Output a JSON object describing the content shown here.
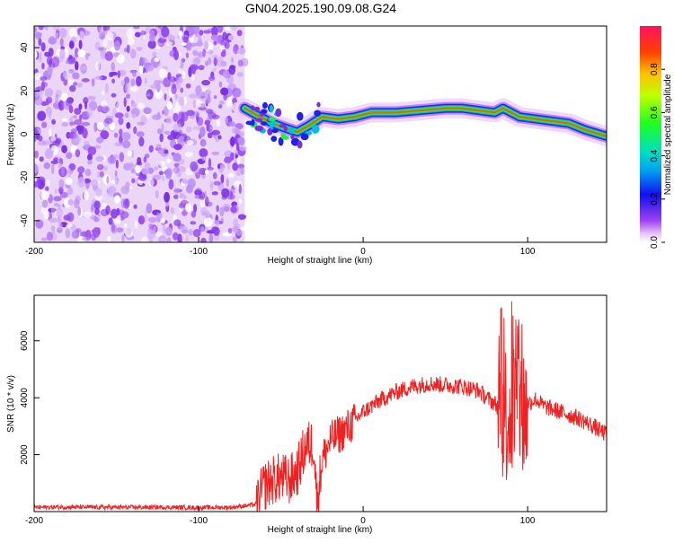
{
  "figure": {
    "title": "GN04.2025.190.09.08.G24"
  },
  "colors": {
    "snr_line": "#ee2222",
    "spectrogram_noise": "#7a2ee0",
    "axis": "#000000"
  },
  "chart_data": [
    {
      "type": "heatmap",
      "xlabel": "Height of straight line (km)",
      "ylabel": "Frequency (Hz)",
      "xlim": [
        -200,
        148
      ],
      "ylim": [
        -50,
        50
      ],
      "xticks": [
        -200,
        -100,
        0,
        100
      ],
      "yticks": [
        -40,
        -20,
        0,
        20,
        40
      ],
      "grid": false,
      "noise_region": {
        "x_from": -200,
        "x_to": -72
      },
      "ridge": [
        {
          "x": -72,
          "y": 12
        },
        {
          "x": -65,
          "y": 9
        },
        {
          "x": -55,
          "y": 5
        },
        {
          "x": -48,
          "y": 3
        },
        {
          "x": -40,
          "y": 1
        },
        {
          "x": -33,
          "y": 4
        },
        {
          "x": -25,
          "y": 8
        },
        {
          "x": -15,
          "y": 7
        },
        {
          "x": -5,
          "y": 8
        },
        {
          "x": 5,
          "y": 10
        },
        {
          "x": 20,
          "y": 10
        },
        {
          "x": 35,
          "y": 11
        },
        {
          "x": 50,
          "y": 12
        },
        {
          "x": 60,
          "y": 12
        },
        {
          "x": 70,
          "y": 11
        },
        {
          "x": 80,
          "y": 10
        },
        {
          "x": 85,
          "y": 12
        },
        {
          "x": 95,
          "y": 8
        },
        {
          "x": 105,
          "y": 7
        },
        {
          "x": 115,
          "y": 6
        },
        {
          "x": 125,
          "y": 5
        },
        {
          "x": 135,
          "y": 2
        },
        {
          "x": 148,
          "y": -1
        }
      ],
      "colorbar": {
        "label": "Normalized spectral amplitude",
        "range": [
          0,
          1
        ],
        "ticks": [
          "0.0",
          "0.2",
          "0.4",
          "0.6",
          "0.8"
        ]
      }
    },
    {
      "type": "line",
      "xlabel": "Height of straight line (km)",
      "ylabel": "SNR (10 * v/v)",
      "xlim": [
        -200,
        148
      ],
      "ylim": [
        0,
        7600
      ],
      "xticks": [
        -200,
        -100,
        0,
        100
      ],
      "yticks": [
        2000,
        4000,
        6000
      ],
      "grid": false,
      "series": [
        {
          "x": [
            -200,
            -180,
            -160,
            -140,
            -120,
            -100,
            -80,
            -65,
            -60,
            -55,
            -50,
            -45,
            -40,
            -35,
            -30,
            -28,
            -25,
            -20,
            -15,
            -10,
            -5,
            0,
            10,
            20,
            30,
            40,
            50,
            60,
            70,
            75,
            80,
            85,
            90,
            95,
            97,
            100,
            105,
            110,
            120,
            130,
            140,
            148
          ],
          "values": [
            150,
            160,
            150,
            150,
            150,
            140,
            150,
            250,
            900,
            1100,
            1200,
            1100,
            1400,
            2300,
            2400,
            300,
            1800,
            2500,
            2700,
            2900,
            3200,
            3500,
            3900,
            4200,
            4400,
            4500,
            4450,
            4400,
            4250,
            4000,
            3800,
            3500,
            3500,
            3900,
            3400,
            3800,
            3950,
            3700,
            3500,
            3300,
            3000,
            2700
          ]
        }
      ]
    }
  ]
}
